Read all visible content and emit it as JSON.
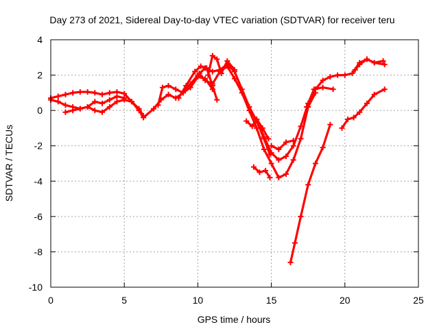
{
  "chart_data": {
    "type": "scatter",
    "title": "Day 273 of 2021, Sidereal Day-to-day VTEC variation (SDTVAR) for receiver teru",
    "xlabel": "GPS time / hours",
    "ylabel": "SDTVAR / TECUs",
    "xlim": [
      0,
      25
    ],
    "ylim": [
      -10,
      4
    ],
    "xticks": [
      0,
      5,
      10,
      15,
      20,
      25
    ],
    "yticks": [
      -10,
      -8,
      -6,
      -4,
      -2,
      0,
      2,
      4
    ],
    "x_tick_labels": [
      "0",
      "5",
      "10",
      "15",
      "20",
      "25"
    ],
    "y_tick_labels": [
      "-10",
      "-8",
      "-6",
      "-4",
      "-2",
      "0",
      "2",
      "4"
    ],
    "grid": true,
    "legend": "none",
    "marker": "plus",
    "color": "#ff0000",
    "series": [
      {
        "x": [
          0,
          0.5,
          1,
          1.5,
          2,
          2.5,
          3,
          3.5,
          4,
          4.5,
          5,
          5.5,
          6,
          6.3
        ],
        "y": [
          0.7,
          0.8,
          0.9,
          1.0,
          1.05,
          1.05,
          1.0,
          0.9,
          1.0,
          1.05,
          0.95,
          0.5,
          0.1,
          -0.3
        ]
      },
      {
        "x": [
          0,
          0.5,
          1,
          1.5,
          2,
          2.5,
          3,
          3.5,
          4,
          4.5,
          5
        ],
        "y": [
          0.6,
          0.5,
          0.3,
          0.2,
          0.1,
          0.2,
          0.5,
          0.4,
          0.6,
          0.8,
          0.7
        ]
      },
      {
        "x": [
          1,
          1.5,
          2,
          2.5,
          3,
          3.5,
          4,
          4.5,
          5,
          5.5,
          6,
          6.3
        ],
        "y": [
          -0.1,
          0.0,
          0.1,
          0.2,
          0.0,
          -0.1,
          0.2,
          0.5,
          0.6,
          0.5,
          0.0,
          -0.4
        ]
      },
      {
        "x": [
          6.3,
          7,
          7.5,
          8,
          8.5,
          9,
          9.5,
          10,
          10.5,
          11,
          11.5,
          12,
          12.5,
          13,
          13.5,
          14,
          14.5,
          14.9
        ],
        "y": [
          -0.4,
          0.1,
          0.6,
          0.9,
          0.7,
          1.0,
          1.5,
          2.0,
          2.4,
          2.2,
          2.3,
          2.6,
          2.2,
          1.2,
          0.2,
          -0.6,
          -1.6,
          -2.5
        ]
      },
      {
        "x": [
          7.3,
          7.6,
          8,
          8.5,
          9,
          9.5,
          10,
          10.5,
          11
        ],
        "y": [
          0.3,
          1.3,
          1.4,
          1.2,
          1.0,
          1.3,
          1.9,
          1.8,
          1.2
        ]
      },
      {
        "x": [
          8.7,
          9.2,
          9.8,
          10.2,
          10.6,
          11,
          11.3
        ],
        "y": [
          0.7,
          1.4,
          2.2,
          2.5,
          2.4,
          1.4,
          0.6
        ]
      },
      {
        "x": [
          10.7,
          11,
          11.3,
          11.6,
          12,
          12.5
        ],
        "y": [
          2.0,
          3.1,
          2.9,
          2.1,
          2.8,
          2.3
        ]
      },
      {
        "x": [
          10.1,
          10.5,
          11,
          11.5,
          12,
          12.5,
          13,
          13.5,
          14,
          14.5,
          15,
          15.5,
          16,
          16.5,
          17,
          17.5,
          18
        ],
        "y": [
          2.1,
          1.7,
          1.5,
          2.2,
          2.5,
          1.8,
          1.0,
          0.0,
          -1.0,
          -2.2,
          -3.0,
          -3.8,
          -3.6,
          -2.8,
          -1.6,
          0.2,
          1.0
        ]
      },
      {
        "x": [
          13.3,
          13.7,
          14,
          14.4,
          14.8
        ],
        "y": [
          -0.6,
          -0.9,
          -0.5,
          -1.0,
          -1.6
        ]
      },
      {
        "x": [
          13.8,
          14.2,
          14.6,
          14.9
        ],
        "y": [
          -3.2,
          -3.5,
          -3.4,
          -3.8
        ]
      },
      {
        "x": [
          14,
          14.5,
          15,
          15.5,
          16,
          16.5,
          17,
          17.5,
          18,
          18.5,
          19,
          19.5,
          20,
          20.5,
          21,
          21.5,
          22,
          22.6
        ],
        "y": [
          -0.5,
          -1.5,
          -2.4,
          -2.8,
          -2.6,
          -2.0,
          -0.9,
          0.4,
          1.2,
          1.7,
          1.9,
          2.0,
          2.0,
          2.1,
          2.7,
          2.9,
          2.7,
          2.8
        ]
      },
      {
        "x": [
          15,
          15.5,
          16,
          16.5
        ],
        "y": [
          -2.0,
          -2.2,
          -1.8,
          -1.7
        ]
      },
      {
        "x": [
          17.4,
          17.9,
          18.5,
          19.2
        ],
        "y": [
          0.2,
          1.2,
          1.3,
          1.2
        ]
      },
      {
        "x": [
          16.3,
          16.6,
          17,
          17.5,
          18,
          18.5,
          19
        ],
        "y": [
          -8.6,
          -7.5,
          -6.0,
          -4.2,
          -3.0,
          -2.1,
          -0.8
        ]
      },
      {
        "x": [
          20.7,
          21,
          21.5,
          22,
          22.7
        ],
        "y": [
          2.3,
          2.6,
          2.9,
          2.7,
          2.6
        ]
      },
      {
        "x": [
          19.8,
          20.2,
          20.6,
          21,
          21.5,
          22,
          22.7
        ],
        "y": [
          -1.0,
          -0.5,
          -0.4,
          -0.1,
          0.4,
          0.9,
          1.2
        ]
      }
    ]
  }
}
